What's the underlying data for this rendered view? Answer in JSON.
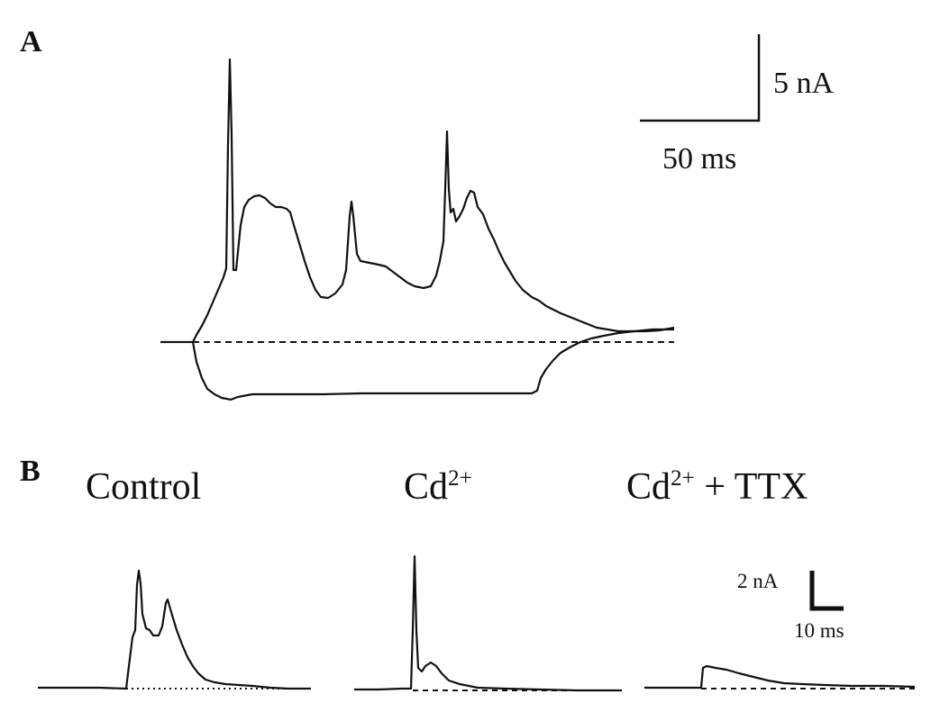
{
  "panels": {
    "a": {
      "label": "A",
      "scale_bar": {
        "y_label": "5 nA",
        "x_label": "50 ms"
      }
    },
    "b": {
      "label": "B",
      "titles": {
        "control": "Control",
        "cd": {
          "base": "Cd",
          "sup": "2+"
        },
        "cd_ttx": {
          "base": "Cd",
          "sup": "2+",
          "rest": " + TTX"
        }
      },
      "scale_bar": {
        "y_label": "2 nA",
        "x_label": "10 ms"
      }
    }
  },
  "colors": {
    "trace": "#111111",
    "background": "#ffffff"
  }
}
